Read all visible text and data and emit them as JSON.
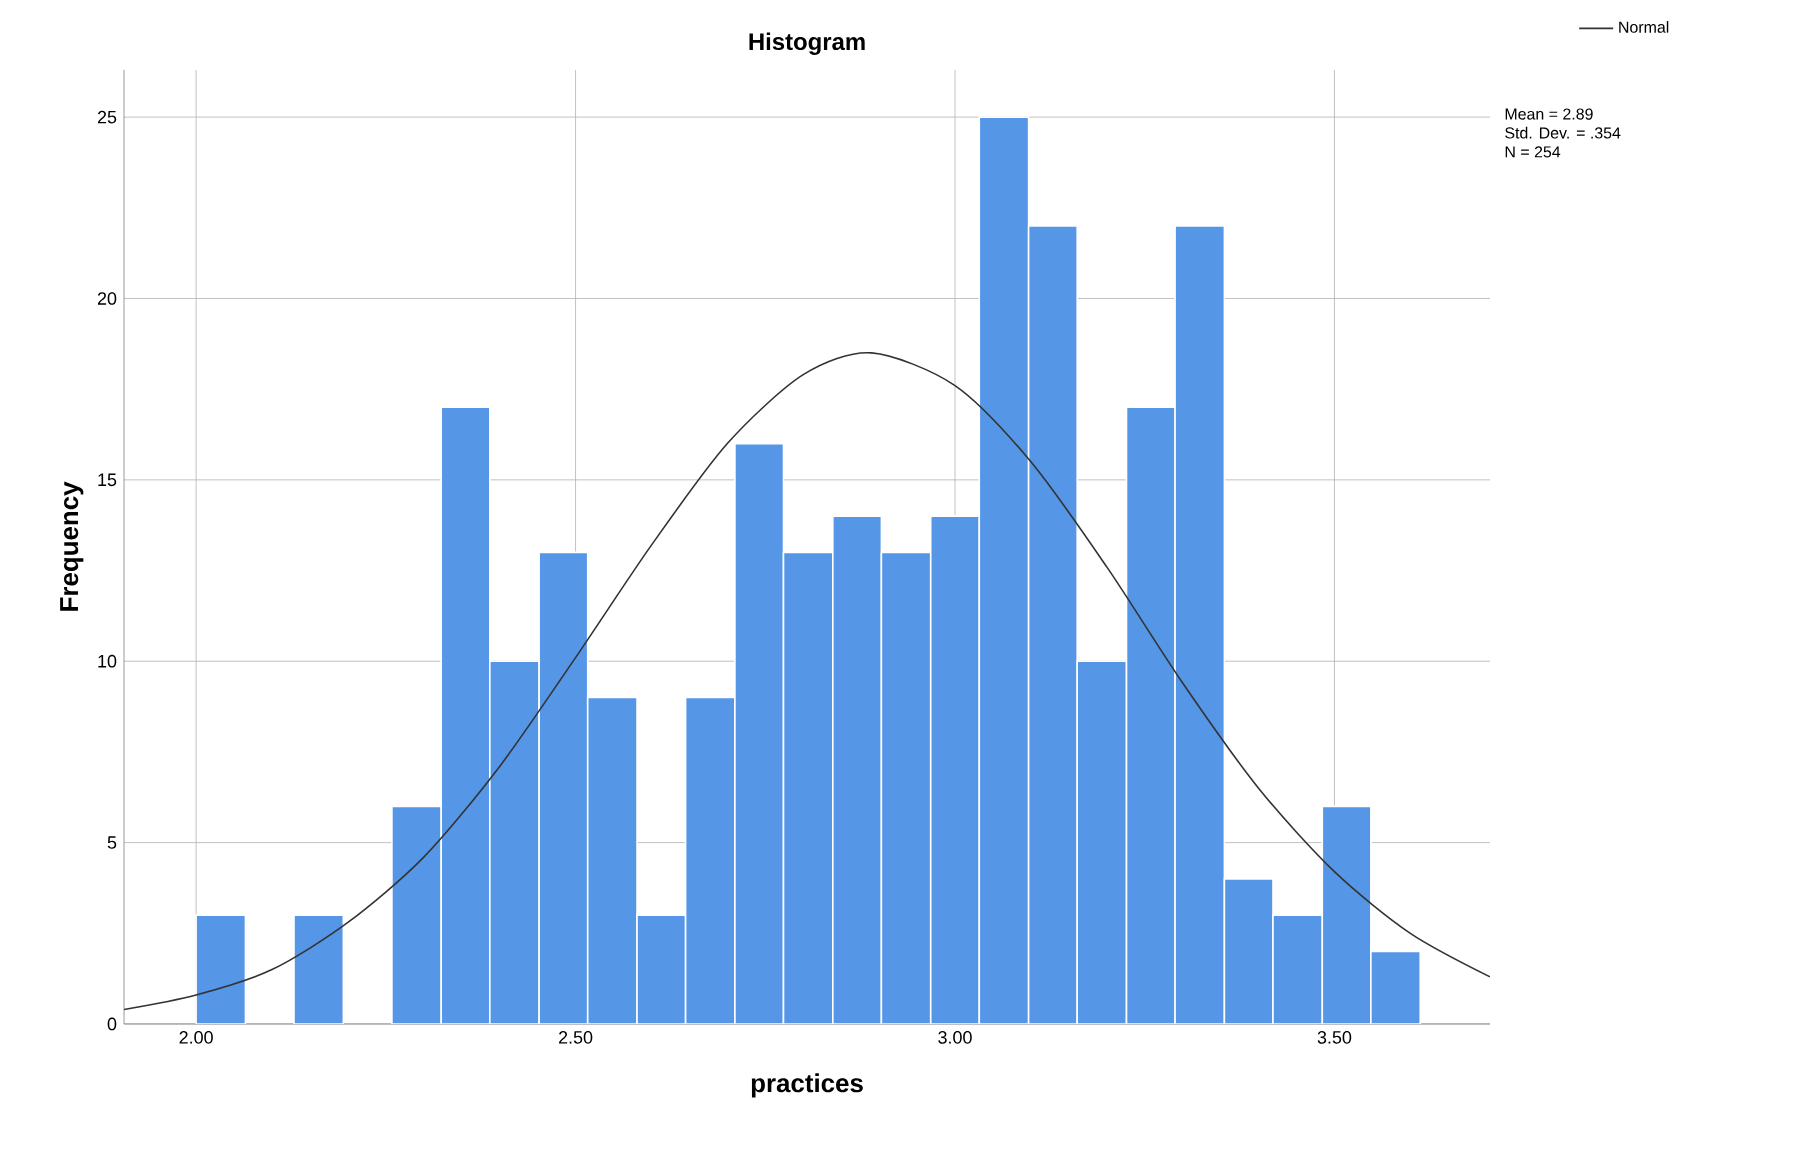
{
  "chart_data": {
    "type": "histogram",
    "title": "Histogram",
    "xlabel": "practices",
    "ylabel": "Frequency",
    "bins": [
      2.0,
      2.065,
      2.129,
      2.194,
      2.258,
      2.323,
      2.387,
      2.452,
      2.516,
      2.581,
      2.645,
      2.71,
      2.774,
      2.839,
      2.903,
      2.968,
      3.032,
      3.097,
      3.161,
      3.226,
      3.29,
      3.355,
      3.419,
      3.484,
      3.548,
      3.613
    ],
    "values": [
      3,
      0,
      3,
      0,
      6,
      17,
      10,
      13,
      9,
      3,
      9,
      16,
      13,
      14,
      13,
      14,
      25,
      22,
      10,
      17,
      22,
      4,
      3,
      6,
      2
    ],
    "color": "#5596e6",
    "series": [
      {
        "type": "line",
        "name": "Normal",
        "color": "#333333",
        "x": [
          1.905,
          2.0,
          2.1,
          2.2,
          2.3,
          2.4,
          2.5,
          2.6,
          2.7,
          2.8,
          2.89,
          3.0,
          3.1,
          3.2,
          3.3,
          3.4,
          3.5,
          3.6,
          3.705
        ],
        "values": [
          0.4,
          0.8,
          1.5,
          2.8,
          4.6,
          7.1,
          10.1,
          13.2,
          16.0,
          17.9,
          18.5,
          17.6,
          15.5,
          12.6,
          9.4,
          6.5,
          4.2,
          2.5,
          1.3
        ]
      }
    ],
    "xlim": [
      1.905,
      3.705
    ],
    "ylim": [
      0,
      26.3
    ],
    "xticks": [
      {
        "value": 2,
        "label": "2.00"
      },
      {
        "value": 2.5,
        "label": "2.50"
      },
      {
        "value": 3,
        "label": "3.00"
      },
      {
        "value": 3.5,
        "label": "3.50"
      }
    ],
    "yticks": [
      0,
      5,
      10,
      15,
      20,
      25
    ],
    "annotations": [
      "Mean = 2.89",
      "Std. Dev. = .354",
      "N = 254"
    ],
    "grid": true,
    "legend": "top right",
    "marker": "none",
    "line_style": "solid"
  }
}
